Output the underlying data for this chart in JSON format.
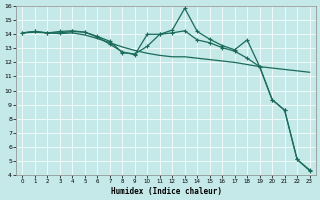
{
  "xlabel": "Humidex (Indice chaleur)",
  "background_color": "#c5e8e8",
  "line_color": "#1a6b5a",
  "xlim_min": -0.5,
  "xlim_max": 23.5,
  "ylim_min": 4,
  "ylim_max": 16,
  "yticks": [
    4,
    5,
    6,
    7,
    8,
    9,
    10,
    11,
    12,
    13,
    14,
    15,
    16
  ],
  "xticks": [
    0,
    1,
    2,
    3,
    4,
    5,
    6,
    7,
    8,
    9,
    10,
    11,
    12,
    13,
    14,
    15,
    16,
    17,
    18,
    19,
    20,
    21,
    22,
    23
  ],
  "line_peak_x": [
    0,
    1,
    2,
    3,
    4,
    5,
    6,
    7,
    8,
    9,
    10,
    11,
    12,
    13,
    14,
    15,
    16,
    17,
    18,
    19,
    20,
    21,
    22,
    23
  ],
  "line_peak_y": [
    14.1,
    14.2,
    14.1,
    14.2,
    14.25,
    14.15,
    13.8,
    13.3,
    12.75,
    12.55,
    14.0,
    14.0,
    14.3,
    15.85,
    14.2,
    13.65,
    13.2,
    12.9,
    13.6,
    11.7,
    9.35,
    8.6,
    5.1,
    4.35
  ],
  "line_mid_x": [
    0,
    1,
    2,
    3,
    4,
    5,
    6,
    7,
    8,
    9,
    10,
    11,
    12,
    13,
    14,
    15,
    16,
    17,
    18,
    19,
    20,
    21,
    22,
    23
  ],
  "line_mid_y": [
    14.1,
    14.2,
    14.1,
    14.1,
    14.2,
    14.15,
    13.85,
    13.5,
    12.7,
    12.6,
    13.15,
    14.0,
    14.1,
    14.25,
    13.6,
    13.4,
    13.05,
    12.8,
    12.3,
    11.7,
    9.35,
    8.6,
    5.1,
    4.3
  ],
  "line_bot_x": [
    0,
    1,
    2,
    3,
    4,
    5,
    6,
    7,
    8,
    9,
    10,
    11,
    12,
    13,
    14,
    15,
    16,
    17,
    18,
    19,
    20,
    21,
    22,
    23
  ],
  "line_bot_y": [
    14.1,
    14.15,
    14.1,
    14.05,
    14.1,
    13.95,
    13.7,
    13.4,
    13.1,
    12.85,
    12.65,
    12.5,
    12.4,
    12.4,
    12.3,
    12.2,
    12.1,
    12.0,
    11.85,
    11.7,
    11.6,
    11.5,
    11.4,
    11.3
  ]
}
